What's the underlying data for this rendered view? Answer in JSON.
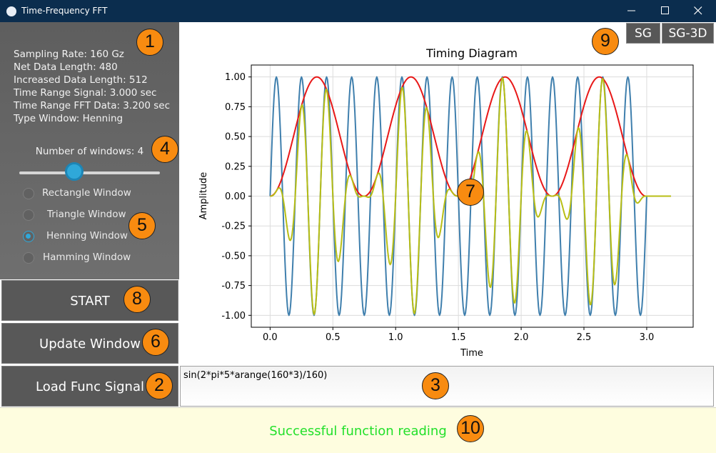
{
  "window": {
    "title": "Time-Frequency FFT"
  },
  "info": {
    "lines": [
      "Sampling Rate: 160 Gz",
      "Net Data Length: 480",
      "Increased Data Length: 512",
      "Time Range Signal: 3.000 sec",
      "Time Range FFT Data: 3.200 sec",
      "Type Window: Henning"
    ]
  },
  "slider": {
    "label": "Number of windows: 4",
    "value": 4,
    "min": 1,
    "max": 10,
    "accent": "#2fa8d9"
  },
  "window_types": [
    {
      "label": "Rectangle Window",
      "checked": false
    },
    {
      "label": "Triangle Window",
      "checked": false
    },
    {
      "label": "Henning Window",
      "checked": true
    },
    {
      "label": "Hamming Window",
      "checked": false
    }
  ],
  "buttons": {
    "start": "START",
    "update": "Update Window",
    "load": "Load Func Signal",
    "sg": "SG",
    "sg3d": "SG-3D"
  },
  "formula": {
    "value": "sin(2*pi*5*arange(160*3)/160)"
  },
  "status": {
    "text": "Successful function reading",
    "color": "#22e02a"
  },
  "badges": [
    "1",
    "2",
    "3",
    "4",
    "5",
    "6",
    "7",
    "8",
    "9",
    "10"
  ],
  "chart_data": {
    "type": "line",
    "title": "Timing Diagram",
    "xlabel": "Time",
    "ylabel": "Amplitude",
    "xlim": [
      -0.15,
      3.37
    ],
    "ylim": [
      -1.1,
      1.1
    ],
    "xticks": [
      0.0,
      0.5,
      1.0,
      1.5,
      2.0,
      2.5,
      3.0
    ],
    "yticks": [
      -1.0,
      -0.75,
      -0.5,
      -0.25,
      0.0,
      0.25,
      0.5,
      0.75,
      1.0
    ],
    "grid": true,
    "legend": false,
    "sampling_rate": 160,
    "signal_duration": 3.0,
    "fft_duration": 3.2,
    "series": [
      {
        "description": "signal sin(2*pi*5*t), t in [0, 3.0)",
        "color": "#3f7fad",
        "frequency": 5
      },
      {
        "description": "Hanning window, 4 windows over signal range",
        "color": "#e81818",
        "windows": 4
      },
      {
        "description": "windowed signal (signal x window)",
        "color": "#b8be15"
      }
    ]
  }
}
